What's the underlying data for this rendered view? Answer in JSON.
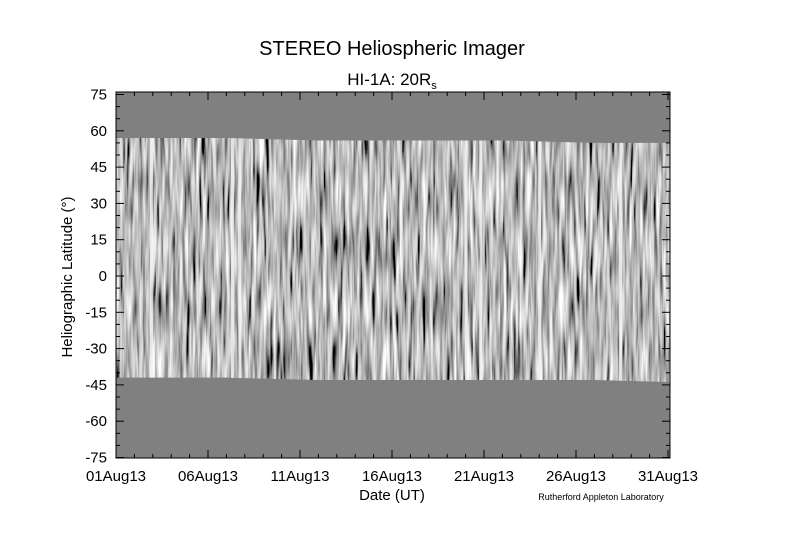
{
  "chart_data": {
    "type": "heatmap",
    "title": "STEREO Heliospheric Imager",
    "subtitle": {
      "main": "HI-1A: 20R",
      "subscript": "s"
    },
    "xlabel": "Date (UT)",
    "ylabel": "Heliographic Latitude (°)",
    "x_ticks": [
      "01Aug13",
      "06Aug13",
      "11Aug13",
      "16Aug13",
      "21Aug13",
      "26Aug13",
      "31Aug13"
    ],
    "x_range": [
      "01Aug13",
      "01Sep13"
    ],
    "y_ticks": [
      75,
      60,
      45,
      30,
      15,
      0,
      -15,
      -30,
      -45,
      -60,
      -75
    ],
    "ylim": [
      -77,
      77
    ],
    "data_coverage": {
      "description": "running-difference latitude-time map; data present only between the latitude limits below, grey fill elsewhere",
      "upper_latitude_limit": [
        [
          0,
          57
        ],
        [
          6,
          57
        ],
        [
          11,
          56
        ],
        [
          16,
          56
        ],
        [
          21,
          56
        ],
        [
          26,
          55
        ],
        [
          31,
          55
        ]
      ],
      "lower_latitude_limit": [
        [
          0,
          -42
        ],
        [
          6,
          -42
        ],
        [
          11,
          -43
        ],
        [
          16,
          -43
        ],
        [
          21,
          -43
        ],
        [
          26,
          -43
        ],
        [
          31,
          -44
        ]
      ],
      "bright_columns_day": [
        1.9,
        6.3,
        6.7,
        19.0,
        19.8,
        23.0,
        27.4
      ]
    },
    "grid": false,
    "colors": {
      "background_fill": "#808080",
      "data_dark": "#000000",
      "data_light": "#ffffff",
      "axes": "#000000"
    },
    "credit": "Rutherford Appleton Laboratory"
  }
}
